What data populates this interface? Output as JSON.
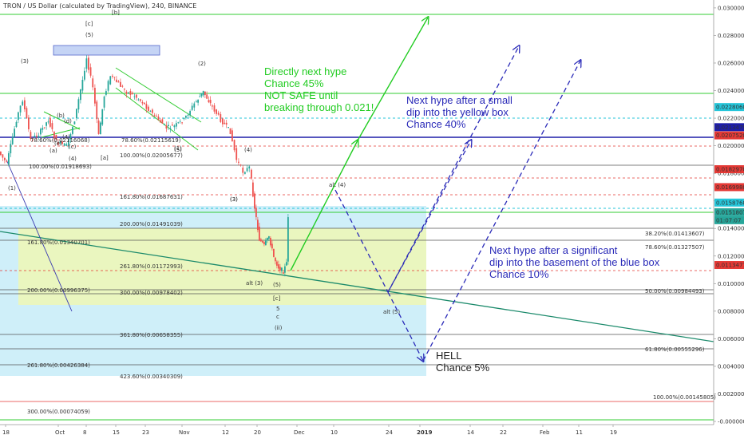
{
  "chart_data": {
    "type": "candlestick",
    "title": "TRON / US Dollar (calculated by TradingView), 240, BINANCE",
    "x_ticks": [
      "18",
      "Oct",
      "8",
      "15",
      "23",
      "Nov",
      "12",
      "20",
      "Dec",
      "10",
      "24",
      "2019",
      "14",
      "22",
      "Feb",
      "11",
      "19"
    ],
    "y_ticks": [
      "0.03000000",
      "0.02800000",
      "0.02600000",
      "0.02400000",
      "0.02200000",
      "0.02000000",
      "0.01800000",
      "0.01600000",
      "0.01400000",
      "0.01200000",
      "0.01000000",
      "0.00800000",
      "0.00600000",
      "0.00400000",
      "0.00200000",
      "-0.00000000"
    ],
    "ylim": [
      -0.0006,
      0.0316
    ],
    "grid": false,
    "price_badges": [
      {
        "label": "0.02280600",
        "value": 0.022806,
        "color": "#26c6da"
      },
      {
        "label": "0.02134798",
        "value": 0.02134798,
        "color": "#1e1ea8"
      },
      {
        "label": "0.02075204",
        "value": 0.02075204,
        "color": "#e53935"
      },
      {
        "label": "0.01829700",
        "value": 0.018297,
        "color": "#e53935"
      },
      {
        "label": "0.01699807",
        "value": 0.01699807,
        "color": "#e53935"
      },
      {
        "label": "0.01587681",
        "value": 0.01587681,
        "color": "#26c6da"
      },
      {
        "label": "0.01518075",
        "value": 0.01518075,
        "color": "#26a69a"
      },
      {
        "label": "01:07:07",
        "value": 0.0146,
        "color": "#26a69a"
      },
      {
        "label": "0.01134779",
        "value": 0.01134779,
        "color": "#e53935"
      }
    ],
    "fib_labels": [
      {
        "text": "78.60%(0.02116068)",
        "value": 0.0212
      },
      {
        "text": "78.60%(0.02115619)",
        "value": 0.0212
      },
      {
        "text": "100.00%(0.02005677)",
        "value": 0.0201
      },
      {
        "text": "100.00%(0.01918693)",
        "value": 0.0192
      },
      {
        "text": "161.80%(0.01687631)",
        "value": 0.0169
      },
      {
        "text": "200.00%(0.01491039)",
        "value": 0.0149
      },
      {
        "text": "38.20%(0.01413607)",
        "value": 0.0141
      },
      {
        "text": "161.80%(0.01340701)",
        "value": 0.0134
      },
      {
        "text": "78.60%(0.01327507)",
        "value": 0.0133
      },
      {
        "text": "261.80%(0.01172993)",
        "value": 0.0117
      },
      {
        "text": "200.00%(0.00996375)",
        "value": 0.01
      },
      {
        "text": "300.00%(0.00978402)",
        "value": 0.0098
      },
      {
        "text": "50.00%(0.00984493)",
        "value": 0.0099
      },
      {
        "text": "361.80%(0.00658355)",
        "value": 0.0066
      },
      {
        "text": "61.80%(0.00555296)",
        "value": 0.0056
      },
      {
        "text": "261.80%(0.00426384)",
        "value": 0.0043
      },
      {
        "text": "423.60%(0.00340309)",
        "value": 0.0034
      },
      {
        "text": "100.00%(0.00145805)",
        "value": 0.0015
      },
      {
        "text": "300.00%(0.00074059)",
        "value": 0.0007
      }
    ],
    "wave_labels": [
      "(3)",
      "[c]",
      "(5)",
      "[b]",
      "(2)",
      "(4)",
      "(3)",
      "(4)",
      "(5)",
      "[a]",
      "(b)",
      "(d)",
      "(a)",
      "(c)",
      "(e)",
      "(4)",
      "(1)",
      "(3)",
      "(1)",
      "alt (4)",
      "alt (3)",
      "(5)",
      "[c]",
      "5",
      "c",
      "(ii)",
      "alt (5)"
    ],
    "annotations": [
      {
        "lines": [
          "Directly next hype",
          "Chance 45%",
          "NOT SAFE until",
          "breaking through 0.021!"
        ],
        "color": "#22cc22"
      },
      {
        "lines": [
          "Next hype after a small",
          "dip into the yellow box",
          "Chance 40%"
        ],
        "color": "#2a2ab8"
      },
      {
        "lines": [
          "Next hype after a significant",
          "dip into the basement of the blue box",
          "Chance 10%"
        ],
        "color": "#2a2ab8"
      },
      {
        "lines": [
          "HELL",
          "Chance 5%"
        ],
        "color": "#222222"
      }
    ]
  }
}
